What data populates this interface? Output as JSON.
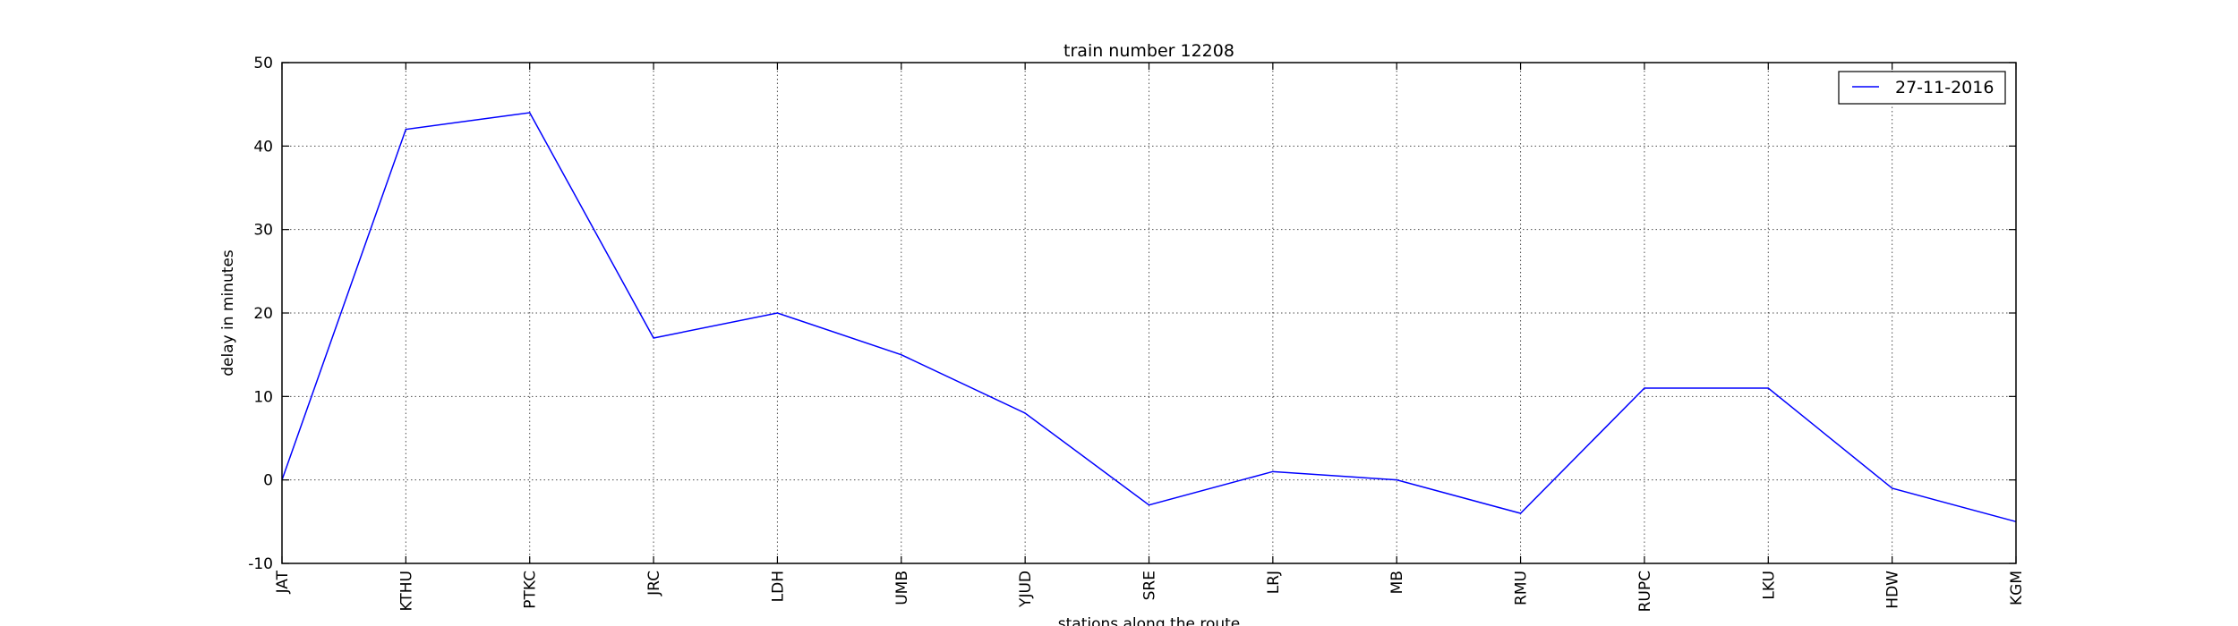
{
  "chart_data": {
    "type": "line",
    "title": "train number 12208",
    "xlabel": "stations along the route",
    "ylabel": "delay in minutes",
    "categories": [
      "JAT",
      "KTHU",
      "PTKC",
      "JRC",
      "LDH",
      "UMB",
      "YJUD",
      "SRE",
      "LRJ",
      "MB",
      "RMU",
      "RUPC",
      "LKU",
      "HDW",
      "KGM"
    ],
    "series": [
      {
        "name": "27-11-2016",
        "color": "#0000ff",
        "values": [
          0,
          42,
          44,
          17,
          20,
          15,
          8,
          -3,
          1,
          0,
          -4,
          11,
          11,
          -1,
          -5
        ]
      }
    ],
    "ylim": [
      -10,
      50
    ],
    "yticks": [
      -10,
      0,
      10,
      20,
      30,
      40,
      50
    ],
    "grid": true,
    "legend": "top-right"
  }
}
